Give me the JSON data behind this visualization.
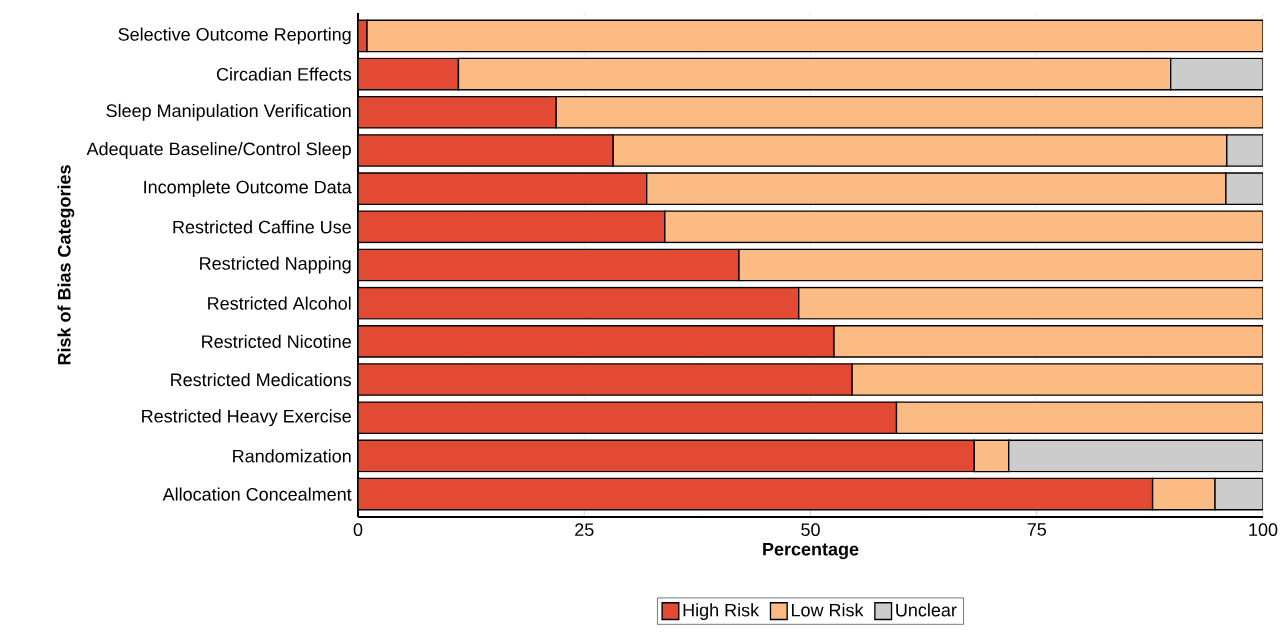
{
  "chart_data": {
    "type": "bar",
    "orientation": "horizontal",
    "stacked": true,
    "xlabel": "Percentage",
    "ylabel": "Risk of Bias Categories",
    "categories": [
      "Selective Outcome Reporting",
      "Circadian Effects",
      "Sleep Manipulation Verification",
      "Adequate Baseline/Control Sleep",
      "Incomplete Outcome Data",
      "Restricted Caffine Use",
      "Restricted Napping",
      "Restricted Alcohol",
      "Restricted Nicotine",
      "Restricted Medications",
      "Restricted Heavy Exercise",
      "Randomization",
      "Allocation Concealment"
    ],
    "series": [
      {
        "name": "High Risk",
        "color": "#e34a33",
        "values": [
          1.0,
          11.1,
          21.9,
          28.2,
          31.9,
          33.9,
          42.1,
          48.7,
          52.6,
          54.6,
          59.5,
          68.1,
          87.8
        ]
      },
      {
        "name": "Low Risk",
        "color": "#fdbb84",
        "values": [
          99.0,
          78.7,
          78.1,
          67.8,
          64.0,
          66.1,
          57.9,
          51.3,
          47.4,
          45.4,
          40.5,
          3.8,
          6.9
        ]
      },
      {
        "name": "Unclear",
        "color": "#cccccc",
        "values": [
          null,
          10.2,
          null,
          4.0,
          4.1,
          null,
          null,
          null,
          null,
          null,
          null,
          28.1,
          5.3
        ]
      }
    ],
    "xlim": [
      0,
      100
    ],
    "xticks": [
      0,
      25,
      50,
      75,
      100
    ],
    "grid": "x",
    "legend": "bottom"
  }
}
